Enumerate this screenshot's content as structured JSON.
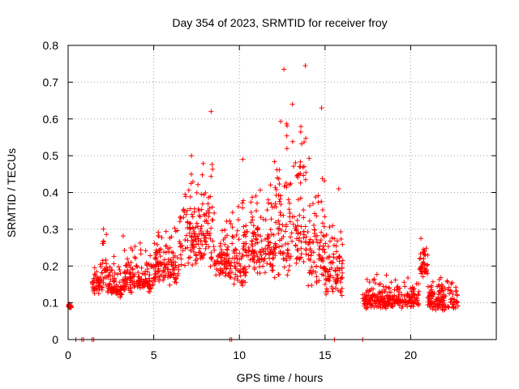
{
  "chart_data": {
    "type": "scatter",
    "title": "Day 354 of 2023, SRMTID for receiver froy",
    "xlabel": "GPS time / hours",
    "ylabel": "SRMTID / TECUs",
    "xlim": [
      0,
      25
    ],
    "ylim": [
      0,
      0.8
    ],
    "x_ticks": [
      0,
      5,
      10,
      15,
      20
    ],
    "y_ticks": [
      0,
      0.1,
      0.2,
      0.3,
      0.4,
      0.5,
      0.6,
      0.7,
      0.8
    ],
    "x_tick_labels": [
      "0",
      "5",
      "10",
      "15",
      "20"
    ],
    "y_tick_labels": [
      "0",
      "0.1",
      "0.2",
      "0.3",
      "0.4",
      "0.5",
      "0.6",
      "0.7",
      "0.8"
    ],
    "grid": true,
    "marker": "+",
    "marker_color": "#ff0000",
    "axis_color": "#000000",
    "grid_color": "#a0a0a0",
    "series": [
      {
        "name": "SRMTID",
        "seed": 354,
        "points_per_hour": 80,
        "approximate_profile": [
          {
            "x_start": 0.0,
            "x_end": 0.2,
            "base": 0.09,
            "spread": 0.01
          },
          {
            "x_start": 1.4,
            "x_end": 2.0,
            "base": 0.15,
            "spread": 0.06
          },
          {
            "x_start": 2.0,
            "x_end": 2.3,
            "base": 0.2,
            "spread": 0.12
          },
          {
            "x_start": 2.3,
            "x_end": 3.2,
            "base": 0.15,
            "spread": 0.08
          },
          {
            "x_start": 3.2,
            "x_end": 5.0,
            "base": 0.17,
            "spread": 0.1
          },
          {
            "x_start": 5.0,
            "x_end": 6.5,
            "base": 0.2,
            "spread": 0.12
          },
          {
            "x_start": 6.5,
            "x_end": 7.5,
            "base": 0.28,
            "spread": 0.18
          },
          {
            "x_start": 7.5,
            "x_end": 8.5,
            "base": 0.3,
            "spread": 0.25
          },
          {
            "x_start": 8.5,
            "x_end": 9.5,
            "base": 0.22,
            "spread": 0.12
          },
          {
            "x_start": 9.5,
            "x_end": 10.5,
            "base": 0.22,
            "spread": 0.18
          },
          {
            "x_start": 10.5,
            "x_end": 12.0,
            "base": 0.25,
            "spread": 0.18
          },
          {
            "x_start": 12.0,
            "x_end": 14.0,
            "base": 0.3,
            "spread": 0.3
          },
          {
            "x_start": 14.0,
            "x_end": 15.0,
            "base": 0.25,
            "spread": 0.25
          },
          {
            "x_start": 15.0,
            "x_end": 16.1,
            "base": 0.18,
            "spread": 0.15
          },
          {
            "x_start": 17.2,
            "x_end": 20.5,
            "base": 0.11,
            "spread": 0.06
          },
          {
            "x_start": 20.5,
            "x_end": 21.0,
            "base": 0.2,
            "spread": 0.07
          },
          {
            "x_start": 21.0,
            "x_end": 22.8,
            "base": 0.11,
            "spread": 0.07
          }
        ],
        "notable_points": [
          {
            "x": 8.35,
            "y": 0.62
          },
          {
            "x": 12.6,
            "y": 0.735
          },
          {
            "x": 13.1,
            "y": 0.64
          },
          {
            "x": 13.85,
            "y": 0.745
          },
          {
            "x": 14.8,
            "y": 0.63
          },
          {
            "x": 7.2,
            "y": 0.5
          },
          {
            "x": 10.2,
            "y": 0.49
          },
          {
            "x": 15.8,
            "y": 0.41
          },
          {
            "x": 20.6,
            "y": 0.275
          }
        ],
        "zero_points": [
          0.45,
          0.8,
          0.9,
          1.4,
          1.5,
          9.45,
          9.55,
          15.55,
          17.2
        ]
      }
    ]
  }
}
